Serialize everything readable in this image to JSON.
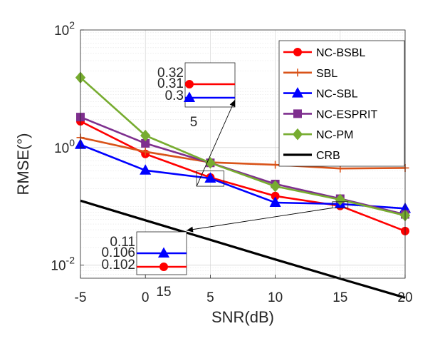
{
  "chart_data": {
    "type": "line",
    "xlabel": "SNR(dB)",
    "ylabel": "RMSE(°)",
    "x": [
      -5,
      0,
      5,
      10,
      15,
      20
    ],
    "x_tick_labels": [
      "-5",
      "0",
      "5",
      "10",
      "15",
      "20"
    ],
    "xlim": [
      -5,
      20
    ],
    "yscale": "log",
    "ylim": [
      0.006,
      100
    ],
    "y_ticks": [
      {
        "value": 0.01,
        "base": "10",
        "exp": "-2"
      },
      {
        "value": 1,
        "base": "10",
        "exp": "0"
      },
      {
        "value": 100,
        "base": "10",
        "exp": "2"
      }
    ],
    "grid": true,
    "legend_position": "top-right",
    "series": [
      {
        "name": "NC-BSBL",
        "color": "#ff0000",
        "marker": "circle",
        "values": [
          2.8,
          0.78,
          0.31,
          0.15,
          0.102,
          0.038
        ]
      },
      {
        "name": "SBL",
        "color": "#d95319",
        "marker": "plus",
        "values": [
          1.48,
          0.85,
          0.56,
          0.51,
          0.44,
          0.45
        ]
      },
      {
        "name": "NC-SBL",
        "color": "#0000ff",
        "marker": "triangle",
        "values": [
          1.12,
          0.41,
          0.3,
          0.116,
          0.11,
          0.092
        ]
      },
      {
        "name": "NC-ESPRIT",
        "color": "#7e2f8e",
        "marker": "square",
        "values": [
          3.3,
          1.18,
          0.55,
          0.24,
          0.135,
          0.073
        ]
      },
      {
        "name": "NC-PM",
        "color": "#77ac30",
        "marker": "diamond",
        "values": [
          15.5,
          1.6,
          0.55,
          0.22,
          0.13,
          0.07
        ]
      },
      {
        "name": "CRB",
        "color": "#000000",
        "marker": "none",
        "values": [
          0.125,
          0.058,
          0.027,
          0.0125,
          0.0059,
          0.0028
        ]
      }
    ],
    "insets": [
      {
        "y_labels": [
          "0.32",
          "0.31",
          "0.3"
        ],
        "x_label": "5",
        "lines": [
          {
            "series": "NC-BSBL",
            "value": 0.31
          },
          {
            "series": "NC-SBL",
            "value": 0.3
          }
        ]
      },
      {
        "y_labels": [
          "0.11",
          "0.106",
          "0.102"
        ],
        "x_label": "15",
        "lines": [
          {
            "series": "NC-SBL",
            "value": 0.11
          },
          {
            "series": "NC-BSBL",
            "value": 0.102
          }
        ]
      }
    ]
  }
}
